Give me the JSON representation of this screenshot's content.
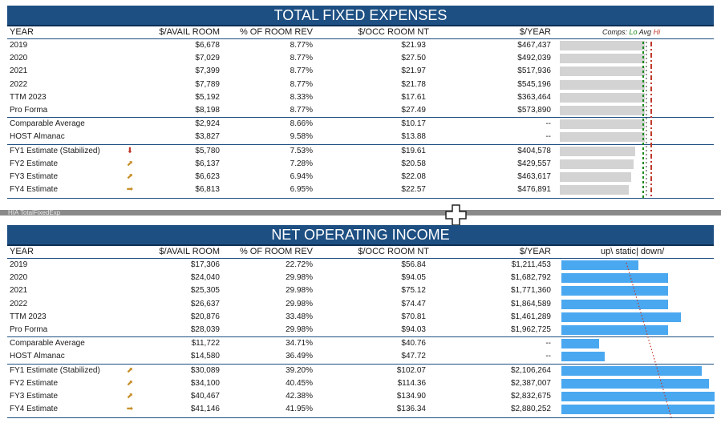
{
  "fixed": {
    "title": "TOTAL FIXED EXPENSES",
    "headers": {
      "year": "YEAR",
      "avail": "$/AVAIL ROOM",
      "pct": "% OF ROOM REV",
      "occ": "$/OCC ROOM NT",
      "yr": "$/YEAR"
    },
    "legend": {
      "comps": "Comps:",
      "lo": "Lo",
      "avg": "Avg",
      "hi": "Hi"
    },
    "rows": [
      {
        "year": "2019",
        "avail": "$6,678",
        "pct": "8.77%",
        "occ": "$21.93",
        "yr": "$467,437",
        "bar": 0.92
      },
      {
        "year": "2020",
        "avail": "$7,029",
        "pct": "8.77%",
        "occ": "$27.50",
        "yr": "$492,039",
        "bar": 0.92
      },
      {
        "year": "2021",
        "avail": "$7,399",
        "pct": "8.77%",
        "occ": "$21.97",
        "yr": "$517,936",
        "bar": 0.92
      },
      {
        "year": "2022",
        "avail": "$7,789",
        "pct": "8.77%",
        "occ": "$21.78",
        "yr": "$545,196",
        "bar": 0.92
      },
      {
        "year": "TTM 2023",
        "avail": "$5,192",
        "pct": "8.33%",
        "occ": "$17.61",
        "yr": "$363,464",
        "bar": 0.92
      },
      {
        "year": "Pro Forma",
        "avail": "$8,198",
        "pct": "8.77%",
        "occ": "$27.49",
        "yr": "$573,890",
        "bar": 0.92
      },
      {
        "year": "Comparable Average",
        "avail": "$2,924",
        "pct": "8.66%",
        "occ": "$10.17",
        "yr": "--",
        "bar": 0.92,
        "sep": true
      },
      {
        "year": "HOST Almanac",
        "avail": "$3,827",
        "pct": "9.58%",
        "occ": "$13.88",
        "yr": "--",
        "bar": 0.92
      },
      {
        "year": "FY1 Estimate (Stabilized)",
        "avail": "$5,780",
        "pct": "7.53%",
        "occ": "$19.61",
        "yr": "$404,578",
        "bar": 0.82,
        "sep": true,
        "icon": "down"
      },
      {
        "year": "FY2 Estimate",
        "avail": "$6,137",
        "pct": "7.28%",
        "occ": "$20.58",
        "yr": "$429,557",
        "bar": 0.8,
        "icon": "up"
      },
      {
        "year": "FY3 Estimate",
        "avail": "$6,623",
        "pct": "6.94%",
        "occ": "$22.08",
        "yr": "$463,617",
        "bar": 0.77,
        "icon": "up"
      },
      {
        "year": "FY4 Estimate",
        "avail": "$6,813",
        "pct": "6.95%",
        "occ": "$22.57",
        "yr": "$476,891",
        "bar": 0.75,
        "icon": "right"
      }
    ]
  },
  "divider_label": "HIA TotalFixedExp",
  "noi": {
    "title": "NET OPERATING INCOME",
    "headers": {
      "year": "YEAR",
      "avail": "$/AVAIL ROOM",
      "pct": "% OF ROOM REV",
      "occ": "$/OCC ROOM NT",
      "yr": "$/YEAR"
    },
    "legend": "up\\ static| down/",
    "rows": [
      {
        "year": "2019",
        "avail": "$17,306",
        "pct": "22.72%",
        "occ": "$56.84",
        "yr": "$1,211,453",
        "bar": 0.41
      },
      {
        "year": "2020",
        "avail": "$24,040",
        "pct": "29.98%",
        "occ": "$94.05",
        "yr": "$1,682,792",
        "bar": 0.57
      },
      {
        "year": "2021",
        "avail": "$25,305",
        "pct": "29.98%",
        "occ": "$75.12",
        "yr": "$1,771,360",
        "bar": 0.57
      },
      {
        "year": "2022",
        "avail": "$26,637",
        "pct": "29.98%",
        "occ": "$74.47",
        "yr": "$1,864,589",
        "bar": 0.57
      },
      {
        "year": "TTM 2023",
        "avail": "$20,876",
        "pct": "33.48%",
        "occ": "$70.81",
        "yr": "$1,461,289",
        "bar": 0.64
      },
      {
        "year": "Pro Forma",
        "avail": "$28,039",
        "pct": "29.98%",
        "occ": "$94.03",
        "yr": "$1,962,725",
        "bar": 0.57
      },
      {
        "year": "Comparable Average",
        "avail": "$11,722",
        "pct": "34.71%",
        "occ": "$40.76",
        "yr": "--",
        "bar": 0.2,
        "sep": true
      },
      {
        "year": "HOST Almanac",
        "avail": "$14,580",
        "pct": "36.49%",
        "occ": "$47.72",
        "yr": "--",
        "bar": 0.23
      },
      {
        "year": "FY1 Estimate (Stabilized)",
        "avail": "$30,089",
        "pct": "39.20%",
        "occ": "$102.07",
        "yr": "$2,106,264",
        "bar": 0.75,
        "sep": true,
        "icon": "up"
      },
      {
        "year": "FY2 Estimate",
        "avail": "$34,100",
        "pct": "40.45%",
        "occ": "$114.36",
        "yr": "$2,387,007",
        "bar": 0.79,
        "icon": "up"
      },
      {
        "year": "FY3 Estimate",
        "avail": "$40,467",
        "pct": "42.38%",
        "occ": "$134.90",
        "yr": "$2,832,675",
        "bar": 0.82,
        "icon": "up"
      },
      {
        "year": "FY4 Estimate",
        "avail": "$41,146",
        "pct": "41.95%",
        "occ": "$136.34",
        "yr": "$2,880,252",
        "bar": 0.82,
        "icon": "right"
      }
    ]
  },
  "colors": {
    "title_bg": "#1d4f82",
    "bar_gray": "#d3d3d3",
    "bar_blue": "#4aa8f0",
    "lo": "#1a8a1a",
    "hi": "#c0392b"
  },
  "icons": {
    "down": "red-down-arrow-icon",
    "up": "gold-up-right-arrow-icon",
    "right": "gold-right-arrow-icon",
    "cross": "move-cursor-icon"
  }
}
